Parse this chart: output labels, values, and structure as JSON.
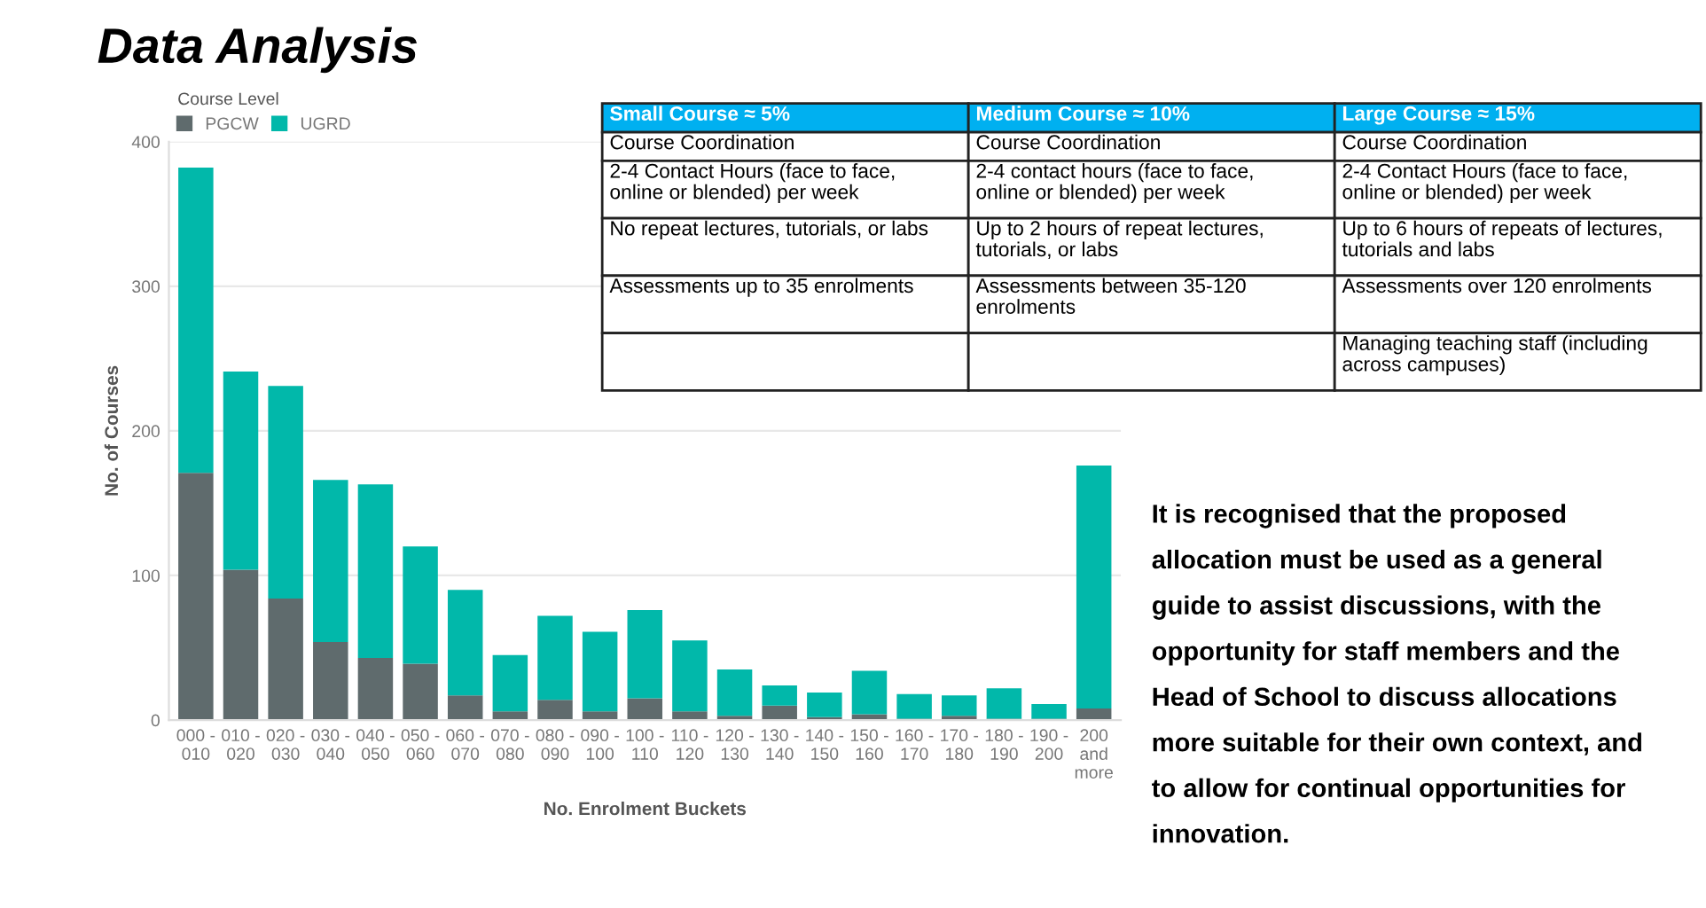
{
  "chart_data": [
    {
      "type": "bar",
      "title": "Data Analysis",
      "stacked": true,
      "xlabel": "No. Enrolment Buckets",
      "ylabel": "No. of Courses",
      "legend_title": "Course Level",
      "legend": "top left",
      "grid": "y",
      "categories": [
        "000 -\n010",
        "010 -\n020",
        "020 -\n030",
        "030 -\n040",
        "040 -\n050",
        "050 -\n060",
        "060 -\n070",
        "070 -\n080",
        "080 -\n090",
        "090 -\n100",
        "100 -\n110",
        "110 -\n120",
        "120 -\n130",
        "130 -\n140",
        "140 -\n150",
        "150 -\n160",
        "160 -\n170",
        "170 -\n180",
        "180 -\n190",
        "190 -\n200",
        "200\nand\nmore"
      ],
      "ylim": [
        0,
        400
      ],
      "yticks": [
        0,
        100,
        200,
        300,
        400
      ],
      "series": [
        {
          "name": "PGCW",
          "color": "#5f6b6d",
          "values": [
            171,
            104,
            84,
            54,
            43,
            39,
            17,
            6,
            14,
            6,
            15,
            6,
            3,
            10,
            2,
            4,
            1,
            3,
            1,
            1,
            8
          ]
        },
        {
          "name": "UGRD",
          "color": "#01b8aa",
          "values": [
            211,
            137,
            147,
            112,
            120,
            81,
            73,
            39,
            58,
            55,
            61,
            49,
            32,
            14,
            17,
            30,
            17,
            14,
            21,
            10,
            168
          ]
        }
      ]
    },
    {
      "type": "other",
      "categories": [
        "Small Course ≈ 5%",
        "Medium Course ≈ 10%",
        "Large Course ≈ 15%"
      ],
      "cell_labels": [
        [
          "Course Coordination",
          "Course Coordination",
          "Course Coordination"
        ],
        [
          "2-4 Contact Hours (face to face,\nonline or blended) per week",
          "2-4 contact hours (face to face,\nonline or blended) per week",
          "2-4 Contact Hours (face to face,\nonline or blended) per week"
        ],
        [
          "No repeat lectures, tutorials, or labs",
          "Up to 2 hours of repeat lectures,\ntutorials, or labs",
          "Up to 6 hours of repeats of lectures,\ntutorials and labs"
        ],
        [
          "Assessments up to 35 enrolments",
          "Assessments between 35-120\nenrolments",
          "Assessments over 120 enrolments"
        ],
        [
          null,
          null,
          "Managing teaching staff (including\nacross campuses)"
        ]
      ]
    },
    {
      "type": "other",
      "annotations": [
        "It is recognised that the proposed\nallocation must be used as a general\nguide to assist discussions, with the\nopportunity for staff members and the\nHead of School to discuss allocations\nmore suitable for their own context, and\nto allow for continual opportunities for\ninnovation."
      ]
    }
  ]
}
